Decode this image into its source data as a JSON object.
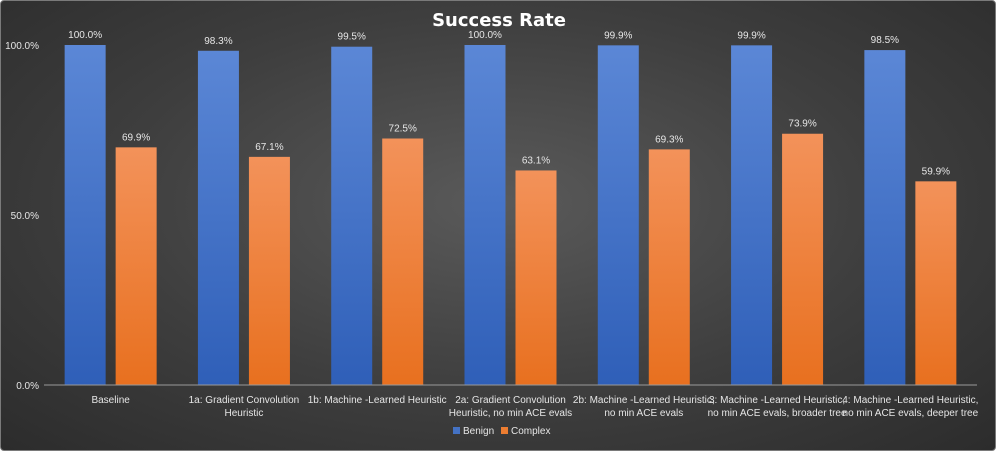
{
  "chart_data": {
    "type": "bar",
    "title": "Success Rate",
    "xlabel": "",
    "ylabel": "",
    "ylim": [
      0,
      100
    ],
    "yticks": [
      "0.0%",
      "50.0%",
      "100.0%"
    ],
    "grid": false,
    "legend_position": "bottom",
    "categories": [
      [
        "Baseline"
      ],
      [
        "1a: Gradient Convolution",
        "Heuristic"
      ],
      [
        "1b: Machine -Learned Heuristic"
      ],
      [
        "2a: Gradient Convolution",
        "Heuristic, no min ACE evals"
      ],
      [
        "2b: Machine -Learned Heuristic,",
        "no min ACE evals"
      ],
      [
        "3: Machine -Learned Heuristic,",
        "no min ACE evals, broader tree"
      ],
      [
        "4: Machine -Learned Heuristic,",
        "no min ACE evals, deeper tree"
      ]
    ],
    "series": [
      {
        "name": "Benign",
        "color": "#4472C4",
        "values": [
          100.0,
          98.3,
          99.5,
          100.0,
          99.9,
          99.9,
          98.5
        ],
        "labels": [
          "100.0%",
          "98.3%",
          "99.5%",
          "100.0%",
          "99.9%",
          "99.9%",
          "98.5%"
        ]
      },
      {
        "name": "Complex",
        "color": "#ED7D31",
        "values": [
          69.9,
          67.1,
          72.5,
          63.1,
          69.3,
          73.9,
          59.9
        ],
        "labels": [
          "69.9%",
          "67.1%",
          "72.5%",
          "63.1%",
          "69.3%",
          "73.9%",
          "59.9%"
        ]
      }
    ]
  }
}
